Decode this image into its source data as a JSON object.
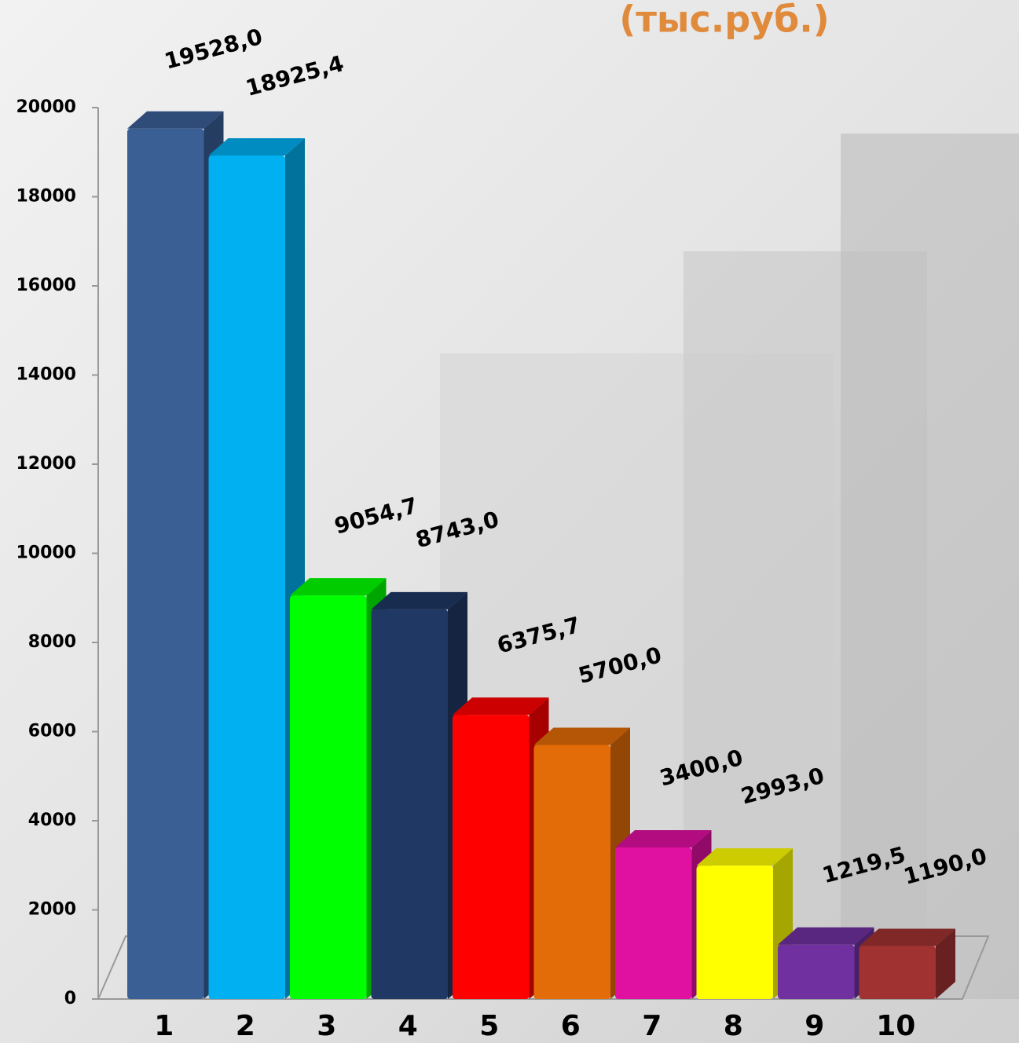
{
  "chart_data": {
    "type": "bar3d",
    "title": "(тыс.руб.)",
    "categories": [
      "1",
      "2",
      "3",
      "4",
      "5",
      "6",
      "7",
      "8",
      "9",
      "10"
    ],
    "values": [
      19528.0,
      18925.4,
      9054.7,
      8743.0,
      6375.7,
      5700.0,
      3400.0,
      2993.0,
      1219.5,
      1190.0
    ],
    "value_labels": [
      "19528,0",
      "18925,4",
      "9054,7",
      "8743,0",
      "6375,7",
      "5700,0",
      "3400,0",
      "2993,0",
      "1219,5",
      "1190,0"
    ],
    "colors": [
      "#3a5f95",
      "#00b0f0",
      "#00ff00",
      "#1f3864",
      "#ff0000",
      "#e36c09",
      "#e010a0",
      "#ffff00",
      "#7030a0",
      "#a03232"
    ],
    "ylim": [
      0,
      20000
    ],
    "yticks": [
      0,
      2000,
      4000,
      6000,
      8000,
      10000,
      12000,
      14000,
      16000,
      18000,
      20000
    ]
  }
}
